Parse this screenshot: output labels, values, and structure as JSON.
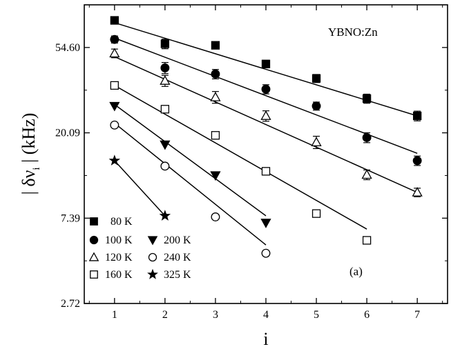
{
  "chart_data": {
    "type": "scatter",
    "title": "",
    "xlabel": "i",
    "ylabel_parts": {
      "pre": "| δν",
      "sub": "i",
      "post": " | (kHz)"
    },
    "y_scale": "log",
    "x_range": [
      0.4,
      7.6
    ],
    "y_range": [
      2.72,
      90.0
    ],
    "x_ticks": [
      1,
      2,
      3,
      4,
      5,
      6,
      7
    ],
    "y_ticks": [
      {
        "value": 2.72,
        "label": "2.72"
      },
      {
        "value": 7.39,
        "label": "7.39"
      },
      {
        "value": 20.09,
        "label": "20.09"
      },
      {
        "value": 54.6,
        "label": "54.60"
      }
    ],
    "annotations": {
      "sample": "YBNO:Zn",
      "panel": "(a)"
    },
    "series": [
      {
        "name": "80 K",
        "marker": "square-filled",
        "x": [
          1,
          2,
          3,
          4,
          5,
          6,
          7
        ],
        "y": [
          75.0,
          57.0,
          56.0,
          45.0,
          38.0,
          30.0,
          24.5
        ],
        "fit": [
          [
            1,
            73.0
          ],
          [
            7,
            24.5
          ]
        ]
      },
      {
        "name": "100 K",
        "marker": "circle-filled",
        "x": [
          1,
          2,
          3,
          4,
          5,
          6,
          7
        ],
        "y": [
          60.0,
          43.0,
          40.0,
          33.5,
          27.5,
          19.0,
          14.5
        ],
        "fit": [
          [
            1,
            61.0
          ],
          [
            7,
            15.8
          ]
        ]
      },
      {
        "name": "120 K",
        "marker": "triangle-up-open",
        "x": [
          1,
          2,
          3,
          4,
          5,
          6,
          7
        ],
        "y": [
          51.0,
          37.0,
          30.5,
          24.5,
          18.0,
          12.3,
          10.0
        ],
        "fit": [
          [
            1,
            49.0
          ],
          [
            7,
            10.0
          ]
        ]
      },
      {
        "name": "160 K",
        "marker": "square-open",
        "x": [
          1,
          2,
          3,
          4,
          5,
          6
        ],
        "y": [
          35.0,
          26.5,
          19.5,
          12.8,
          7.8,
          5.7
        ],
        "fit": [
          [
            1,
            35.0
          ],
          [
            6,
            6.5
          ]
        ]
      },
      {
        "name": "200 K",
        "marker": "triangle-down-filled",
        "x": [
          1,
          2,
          3,
          4
        ],
        "y": [
          27.5,
          17.5,
          12.2,
          7.0
        ],
        "fit": [
          [
            1,
            28.0
          ],
          [
            4,
            7.6
          ]
        ]
      },
      {
        "name": "240 K",
        "marker": "circle-open",
        "x": [
          1,
          2,
          3,
          4
        ],
        "y": [
          22.0,
          13.6,
          7.5,
          4.9
        ],
        "fit": [
          [
            1,
            22.5
          ],
          [
            4,
            5.4
          ]
        ]
      },
      {
        "name": "325 K",
        "marker": "star-filled",
        "x": [
          1,
          2
        ],
        "y": [
          14.5,
          7.6
        ],
        "fit": [
          [
            1,
            14.5
          ],
          [
            2,
            7.6
          ]
        ]
      }
    ],
    "errors": {
      "80 K": [
        3.0,
        3.2,
        2.2,
        2.0,
        1.8,
        1.6,
        1.4
      ],
      "100 K": [
        2.5,
        2.8,
        2.2,
        1.8,
        1.3,
        1.1,
        0.8
      ],
      "120 K": [
        2.6,
        2.4,
        2.1,
        1.5,
        1.3,
        0.7,
        0.5
      ]
    },
    "legend": {
      "placement": "bottom-left",
      "col1": [
        "80 K",
        "100 K",
        "120 K",
        "160 K"
      ],
      "col2": [
        "200 K",
        "240 K",
        "325 K"
      ]
    }
  }
}
